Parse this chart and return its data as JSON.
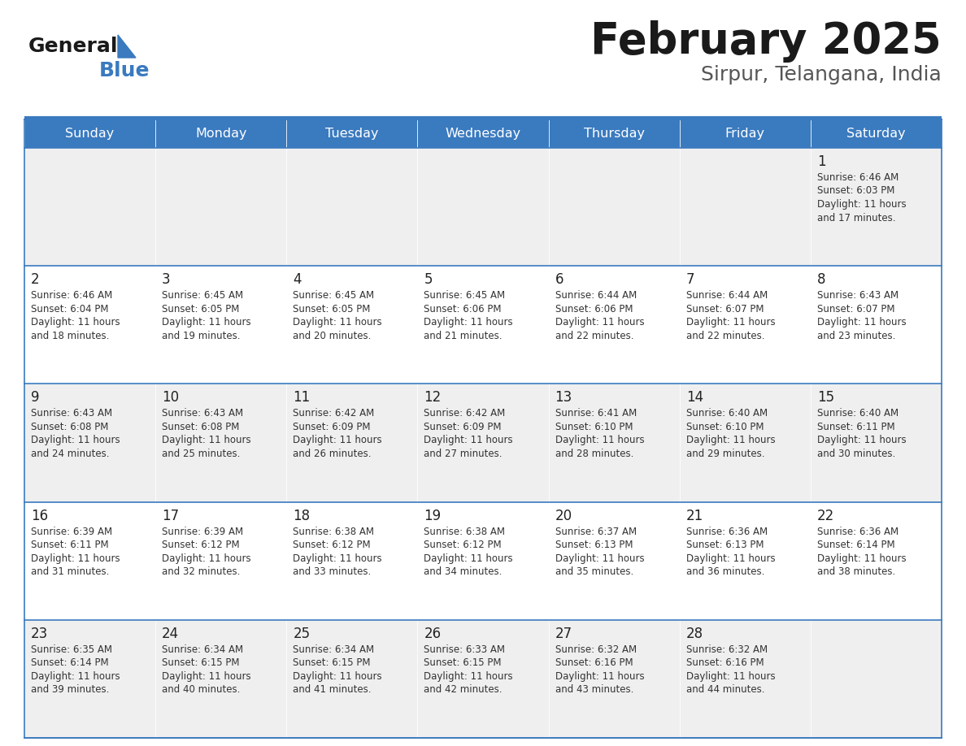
{
  "title": "February 2025",
  "subtitle": "Sirpur, Telangana, India",
  "header_bg": "#3a7abf",
  "header_text": "#ffffff",
  "cell_bg_odd": "#efefef",
  "cell_bg_even": "#ffffff",
  "border_color": "#3a7abf",
  "day_headers": [
    "Sunday",
    "Monday",
    "Tuesday",
    "Wednesday",
    "Thursday",
    "Friday",
    "Saturday"
  ],
  "title_color": "#1a1a1a",
  "subtitle_color": "#555555",
  "logo_general_color": "#1a1a1a",
  "logo_blue_color": "#3a7abf",
  "logo_triangle_color": "#3a7abf",
  "calendar_data": [
    [
      null,
      null,
      null,
      null,
      null,
      null,
      {
        "day": 1,
        "sunrise": "6:46 AM",
        "sunset": "6:03 PM",
        "daylight": "11 hours and 17 minutes."
      }
    ],
    [
      {
        "day": 2,
        "sunrise": "6:46 AM",
        "sunset": "6:04 PM",
        "daylight": "11 hours and 18 minutes."
      },
      {
        "day": 3,
        "sunrise": "6:45 AM",
        "sunset": "6:05 PM",
        "daylight": "11 hours and 19 minutes."
      },
      {
        "day": 4,
        "sunrise": "6:45 AM",
        "sunset": "6:05 PM",
        "daylight": "11 hours and 20 minutes."
      },
      {
        "day": 5,
        "sunrise": "6:45 AM",
        "sunset": "6:06 PM",
        "daylight": "11 hours and 21 minutes."
      },
      {
        "day": 6,
        "sunrise": "6:44 AM",
        "sunset": "6:06 PM",
        "daylight": "11 hours and 22 minutes."
      },
      {
        "day": 7,
        "sunrise": "6:44 AM",
        "sunset": "6:07 PM",
        "daylight": "11 hours and 22 minutes."
      },
      {
        "day": 8,
        "sunrise": "6:43 AM",
        "sunset": "6:07 PM",
        "daylight": "11 hours and 23 minutes."
      }
    ],
    [
      {
        "day": 9,
        "sunrise": "6:43 AM",
        "sunset": "6:08 PM",
        "daylight": "11 hours and 24 minutes."
      },
      {
        "day": 10,
        "sunrise": "6:43 AM",
        "sunset": "6:08 PM",
        "daylight": "11 hours and 25 minutes."
      },
      {
        "day": 11,
        "sunrise": "6:42 AM",
        "sunset": "6:09 PM",
        "daylight": "11 hours and 26 minutes."
      },
      {
        "day": 12,
        "sunrise": "6:42 AM",
        "sunset": "6:09 PM",
        "daylight": "11 hours and 27 minutes."
      },
      {
        "day": 13,
        "sunrise": "6:41 AM",
        "sunset": "6:10 PM",
        "daylight": "11 hours and 28 minutes."
      },
      {
        "day": 14,
        "sunrise": "6:40 AM",
        "sunset": "6:10 PM",
        "daylight": "11 hours and 29 minutes."
      },
      {
        "day": 15,
        "sunrise": "6:40 AM",
        "sunset": "6:11 PM",
        "daylight": "11 hours and 30 minutes."
      }
    ],
    [
      {
        "day": 16,
        "sunrise": "6:39 AM",
        "sunset": "6:11 PM",
        "daylight": "11 hours and 31 minutes."
      },
      {
        "day": 17,
        "sunrise": "6:39 AM",
        "sunset": "6:12 PM",
        "daylight": "11 hours and 32 minutes."
      },
      {
        "day": 18,
        "sunrise": "6:38 AM",
        "sunset": "6:12 PM",
        "daylight": "11 hours and 33 minutes."
      },
      {
        "day": 19,
        "sunrise": "6:38 AM",
        "sunset": "6:12 PM",
        "daylight": "11 hours and 34 minutes."
      },
      {
        "day": 20,
        "sunrise": "6:37 AM",
        "sunset": "6:13 PM",
        "daylight": "11 hours and 35 minutes."
      },
      {
        "day": 21,
        "sunrise": "6:36 AM",
        "sunset": "6:13 PM",
        "daylight": "11 hours and 36 minutes."
      },
      {
        "day": 22,
        "sunrise": "6:36 AM",
        "sunset": "6:14 PM",
        "daylight": "11 hours and 38 minutes."
      }
    ],
    [
      {
        "day": 23,
        "sunrise": "6:35 AM",
        "sunset": "6:14 PM",
        "daylight": "11 hours and 39 minutes."
      },
      {
        "day": 24,
        "sunrise": "6:34 AM",
        "sunset": "6:15 PM",
        "daylight": "11 hours and 40 minutes."
      },
      {
        "day": 25,
        "sunrise": "6:34 AM",
        "sunset": "6:15 PM",
        "daylight": "11 hours and 41 minutes."
      },
      {
        "day": 26,
        "sunrise": "6:33 AM",
        "sunset": "6:15 PM",
        "daylight": "11 hours and 42 minutes."
      },
      {
        "day": 27,
        "sunrise": "6:32 AM",
        "sunset": "6:16 PM",
        "daylight": "11 hours and 43 minutes."
      },
      {
        "day": 28,
        "sunrise": "6:32 AM",
        "sunset": "6:16 PM",
        "daylight": "11 hours and 44 minutes."
      },
      null
    ]
  ]
}
